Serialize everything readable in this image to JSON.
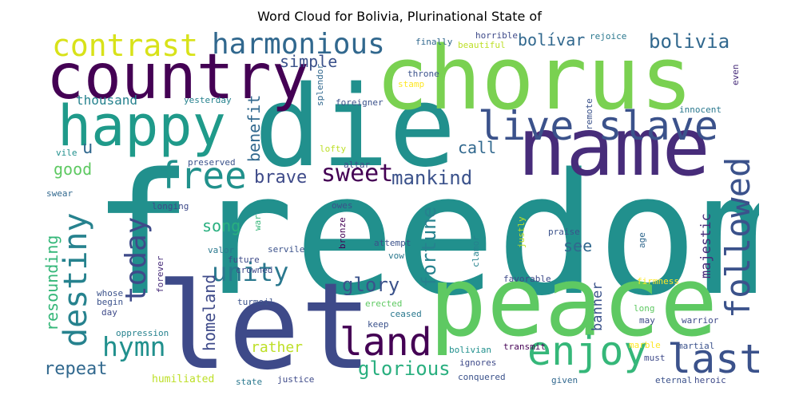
{
  "title": "Word Cloud for Bolivia, Plurinational State of",
  "chart_data": {
    "type": "wordcloud",
    "title": "Word Cloud for Bolivia, Plurinational State of",
    "colormap": "viridis",
    "background": "#ffffff",
    "words": [
      {
        "text": "freedom",
        "weight": 1.0,
        "color": "#21908d",
        "orientation": "horizontal"
      },
      {
        "text": "let",
        "weight": 0.72,
        "color": "#3e4a89",
        "orientation": "horizontal"
      },
      {
        "text": "die",
        "weight": 0.68,
        "color": "#21908d",
        "orientation": "horizontal"
      },
      {
        "text": "peace",
        "weight": 0.63,
        "color": "#5ec962",
        "orientation": "horizontal"
      },
      {
        "text": "chorus",
        "weight": 0.58,
        "color": "#7ad151",
        "orientation": "horizontal"
      },
      {
        "text": "name",
        "weight": 0.55,
        "color": "#472c7a",
        "orientation": "horizontal"
      },
      {
        "text": "country",
        "weight": 0.42,
        "color": "#440154",
        "orientation": "horizontal"
      },
      {
        "text": "happy",
        "weight": 0.38,
        "color": "#1f9a8a",
        "orientation": "horizontal"
      },
      {
        "text": "live slave",
        "weight": 0.3,
        "color": "#3b528b",
        "orientation": "horizontal"
      },
      {
        "text": "enjoy",
        "weight": 0.3,
        "color": "#35b779",
        "orientation": "horizontal"
      },
      {
        "text": "last",
        "weight": 0.3,
        "color": "#3b528b",
        "orientation": "horizontal"
      },
      {
        "text": "land",
        "weight": 0.29,
        "color": "#440154",
        "orientation": "horizontal"
      },
      {
        "text": "free",
        "weight": 0.28,
        "color": "#21918c",
        "orientation": "horizontal"
      },
      {
        "text": "harmonious",
        "weight": 0.22,
        "color": "#31688e",
        "orientation": "horizontal"
      },
      {
        "text": "contrast",
        "weight": 0.22,
        "color": "#d8e219",
        "orientation": "horizontal"
      },
      {
        "text": "followed",
        "weight": 0.24,
        "color": "#3b528b",
        "orientation": "vertical"
      },
      {
        "text": "destiny",
        "weight": 0.24,
        "color": "#26828e",
        "orientation": "vertical"
      },
      {
        "text": "today",
        "weight": 0.22,
        "color": "#3e4a89",
        "orientation": "vertical"
      },
      {
        "text": "unity",
        "weight": 0.2,
        "color": "#2a788e",
        "orientation": "horizontal"
      },
      {
        "text": "hymn",
        "weight": 0.2,
        "color": "#21908d",
        "orientation": "horizontal"
      },
      {
        "text": "sweet",
        "weight": 0.18,
        "color": "#440154",
        "orientation": "horizontal"
      },
      {
        "text": "bolivia",
        "weight": 0.14,
        "color": "#31688e",
        "orientation": "horizontal"
      },
      {
        "text": "mankind",
        "weight": 0.14,
        "color": "#3b528b",
        "orientation": "horizontal"
      },
      {
        "text": "brave",
        "weight": 0.13,
        "color": "#3e4a89",
        "orientation": "horizontal"
      },
      {
        "text": "glory",
        "weight": 0.14,
        "color": "#3b528b",
        "orientation": "horizontal"
      },
      {
        "text": "glorious",
        "weight": 0.14,
        "color": "#29af7f",
        "orientation": "horizontal"
      },
      {
        "text": "repeat",
        "weight": 0.13,
        "color": "#31688e",
        "orientation": "horizontal"
      },
      {
        "text": "fortune",
        "weight": 0.14,
        "color": "#26828e",
        "orientation": "vertical"
      },
      {
        "text": "bolívar",
        "weight": 0.12,
        "color": "#31688e",
        "orientation": "horizontal"
      },
      {
        "text": "simple",
        "weight": 0.12,
        "color": "#3b528b",
        "orientation": "horizontal"
      },
      {
        "text": "resounding",
        "weight": 0.12,
        "color": "#35b779",
        "orientation": "vertical"
      },
      {
        "text": "homeland",
        "weight": 0.12,
        "color": "#3e4a89",
        "orientation": "vertical"
      },
      {
        "text": "benefit",
        "weight": 0.12,
        "color": "#31688e",
        "orientation": "vertical"
      },
      {
        "text": "song",
        "weight": 0.12,
        "color": "#29af7f",
        "orientation": "horizontal"
      },
      {
        "text": "good",
        "weight": 0.12,
        "color": "#5ec962",
        "orientation": "horizontal"
      },
      {
        "text": "call",
        "weight": 0.12,
        "color": "#31688e",
        "orientation": "horizontal"
      },
      {
        "text": "see",
        "weight": 0.11,
        "color": "#31688e",
        "orientation": "horizontal"
      },
      {
        "text": "rather",
        "weight": 0.1,
        "color": "#bddf26",
        "orientation": "horizontal"
      },
      {
        "text": "banner",
        "weight": 0.1,
        "color": "#3b528b",
        "orientation": "vertical"
      },
      {
        "text": "majestic",
        "weight": 0.1,
        "color": "#472c7a",
        "orientation": "vertical"
      },
      {
        "text": "u",
        "weight": 0.11,
        "color": "#31688e",
        "orientation": "horizontal"
      },
      {
        "text": "thousand",
        "weight": 0.08,
        "color": "#26828e",
        "orientation": "horizontal"
      },
      {
        "text": "humiliated",
        "weight": 0.08,
        "color": "#bddf26",
        "orientation": "horizontal"
      },
      {
        "text": "finally",
        "weight": 0.05,
        "color": "#31688e",
        "orientation": "horizontal"
      },
      {
        "text": "horrible",
        "weight": 0.05,
        "color": "#3e4a89",
        "orientation": "horizontal"
      },
      {
        "text": "rejoice",
        "weight": 0.05,
        "color": "#2a788e",
        "orientation": "horizontal"
      },
      {
        "text": "beautiful",
        "weight": 0.05,
        "color": "#bddf26",
        "orientation": "horizontal"
      },
      {
        "text": "throne",
        "weight": 0.05,
        "color": "#3b528b",
        "orientation": "horizontal"
      },
      {
        "text": "stamp",
        "weight": 0.05,
        "color": "#fde725",
        "orientation": "horizontal"
      },
      {
        "text": "even",
        "weight": 0.05,
        "color": "#472c7a",
        "orientation": "vertical"
      },
      {
        "text": "yesterday",
        "weight": 0.05,
        "color": "#26828e",
        "orientation": "horizontal"
      },
      {
        "text": "foreigner",
        "weight": 0.05,
        "color": "#3b528b",
        "orientation": "horizontal"
      },
      {
        "text": "splendor",
        "weight": 0.05,
        "color": "#31688e",
        "orientation": "vertical"
      },
      {
        "text": "remote",
        "weight": 0.05,
        "color": "#3b528b",
        "orientation": "vertical"
      },
      {
        "text": "innocent",
        "weight": 0.05,
        "color": "#2a788e",
        "orientation": "horizontal"
      },
      {
        "text": "vile",
        "weight": 0.05,
        "color": "#21908d",
        "orientation": "horizontal"
      },
      {
        "text": "lofty",
        "weight": 0.05,
        "color": "#bddf26",
        "orientation": "horizontal"
      },
      {
        "text": "preserved",
        "weight": 0.05,
        "color": "#3b528b",
        "orientation": "horizontal"
      },
      {
        "text": "altar",
        "weight": 0.05,
        "color": "#3e4a89",
        "orientation": "horizontal"
      },
      {
        "text": "swear",
        "weight": 0.05,
        "color": "#31688e",
        "orientation": "horizontal"
      },
      {
        "text": "owes",
        "weight": 0.05,
        "color": "#3b528b",
        "orientation": "horizontal"
      },
      {
        "text": "longing",
        "weight": 0.05,
        "color": "#3e4a89",
        "orientation": "horizontal"
      },
      {
        "text": "war",
        "weight": 0.05,
        "color": "#35b779",
        "orientation": "vertical"
      },
      {
        "text": "bronze",
        "weight": 0.05,
        "color": "#440154",
        "orientation": "vertical"
      },
      {
        "text": "clamor",
        "weight": 0.05,
        "color": "#26828e",
        "orientation": "vertical"
      },
      {
        "text": "justly",
        "weight": 0.05,
        "color": "#bddf26",
        "orientation": "vertical"
      },
      {
        "text": "praise",
        "weight": 0.05,
        "color": "#3b528b",
        "orientation": "horizontal"
      },
      {
        "text": "age",
        "weight": 0.05,
        "color": "#31688e",
        "orientation": "vertical"
      },
      {
        "text": "valor",
        "weight": 0.05,
        "color": "#2a788e",
        "orientation": "horizontal"
      },
      {
        "text": "future",
        "weight": 0.05,
        "color": "#3e4a89",
        "orientation": "horizontal"
      },
      {
        "text": "servile",
        "weight": 0.05,
        "color": "#3b528b",
        "orientation": "horizontal"
      },
      {
        "text": "attempt",
        "weight": 0.05,
        "color": "#3b528b",
        "orientation": "horizontal"
      },
      {
        "text": "vow",
        "weight": 0.05,
        "color": "#2a788e",
        "orientation": "horizontal"
      },
      {
        "text": "forever",
        "weight": 0.05,
        "color": "#472c7a",
        "orientation": "vertical"
      },
      {
        "text": "crowned",
        "weight": 0.05,
        "color": "#3e4a89",
        "orientation": "horizontal"
      },
      {
        "text": "whose",
        "weight": 0.05,
        "color": "#3b528b",
        "orientation": "horizontal"
      },
      {
        "text": "favorable",
        "weight": 0.05,
        "color": "#3e4a89",
        "orientation": "horizontal"
      },
      {
        "text": "firmness",
        "weight": 0.05,
        "color": "#fde725",
        "orientation": "horizontal"
      },
      {
        "text": "begin",
        "weight": 0.05,
        "color": "#3b528b",
        "orientation": "horizontal"
      },
      {
        "text": "day",
        "weight": 0.05,
        "color": "#3e4a89",
        "orientation": "horizontal"
      },
      {
        "text": "turmoil",
        "weight": 0.05,
        "color": "#3b528b",
        "orientation": "horizontal"
      },
      {
        "text": "erected",
        "weight": 0.05,
        "color": "#5ec962",
        "orientation": "horizontal"
      },
      {
        "text": "ceased",
        "weight": 0.05,
        "color": "#2a788e",
        "orientation": "horizontal"
      },
      {
        "text": "long",
        "weight": 0.05,
        "color": "#5ec962",
        "orientation": "horizontal"
      },
      {
        "text": "may",
        "weight": 0.05,
        "color": "#3e4a89",
        "orientation": "horizontal"
      },
      {
        "text": "warrior",
        "weight": 0.05,
        "color": "#3e4a89",
        "orientation": "horizontal"
      },
      {
        "text": "oppression",
        "weight": 0.05,
        "color": "#26828e",
        "orientation": "horizontal"
      },
      {
        "text": "keep",
        "weight": 0.05,
        "color": "#3b528b",
        "orientation": "horizontal"
      },
      {
        "text": "marble",
        "weight": 0.05,
        "color": "#fde725",
        "orientation": "horizontal"
      },
      {
        "text": "must",
        "weight": 0.05,
        "color": "#3e4a89",
        "orientation": "horizontal"
      },
      {
        "text": "transmit",
        "weight": 0.05,
        "color": "#440154",
        "orientation": "horizontal"
      },
      {
        "text": "martial",
        "weight": 0.05,
        "color": "#3b528b",
        "orientation": "horizontal"
      },
      {
        "text": "bolivian",
        "weight": 0.05,
        "color": "#21908d",
        "orientation": "horizontal"
      },
      {
        "text": "ignores",
        "weight": 0.05,
        "color": "#3e4a89",
        "orientation": "horizontal"
      },
      {
        "text": "conquered",
        "weight": 0.05,
        "color": "#3b528b",
        "orientation": "horizontal"
      },
      {
        "text": "given",
        "weight": 0.05,
        "color": "#31688e",
        "orientation": "horizontal"
      },
      {
        "text": "state",
        "weight": 0.05,
        "color": "#2a788e",
        "orientation": "horizontal"
      },
      {
        "text": "justice",
        "weight": 0.05,
        "color": "#3e4a89",
        "orientation": "horizontal"
      },
      {
        "text": "eternal",
        "weight": 0.05,
        "color": "#3b528b",
        "orientation": "horizontal"
      },
      {
        "text": "heroic",
        "weight": 0.05,
        "color": "#3e4a89",
        "orientation": "horizontal"
      }
    ]
  }
}
